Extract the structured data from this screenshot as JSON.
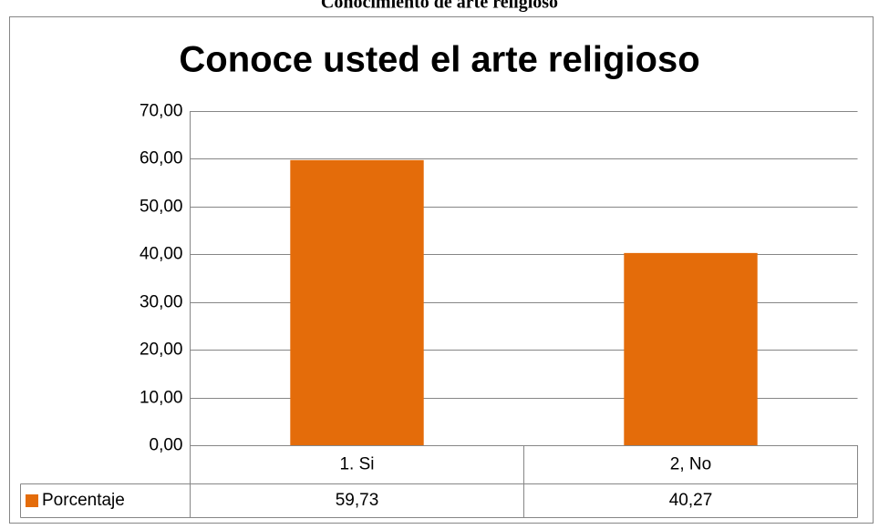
{
  "caption": "Conocimiento de arte religioso",
  "chart_data": {
    "type": "bar",
    "title": "Conoce usted el arte religioso",
    "categories": [
      "1. Si",
      "2, No"
    ],
    "series": [
      {
        "name": "Porcentaje",
        "color": "#e46c0a",
        "values": [
          59.73,
          40.27
        ],
        "value_labels": [
          "59,73",
          "40,27"
        ]
      }
    ],
    "ylim": [
      0,
      70
    ],
    "yticks": [
      {
        "value": 0,
        "label": "0,00"
      },
      {
        "value": 10,
        "label": "10,00"
      },
      {
        "value": 20,
        "label": "20,00"
      },
      {
        "value": 30,
        "label": "30,00"
      },
      {
        "value": 40,
        "label": "40,00"
      },
      {
        "value": 50,
        "label": "50,00"
      },
      {
        "value": 60,
        "label": "60,00"
      },
      {
        "value": 70,
        "label": "70,00"
      }
    ],
    "grid": true
  }
}
